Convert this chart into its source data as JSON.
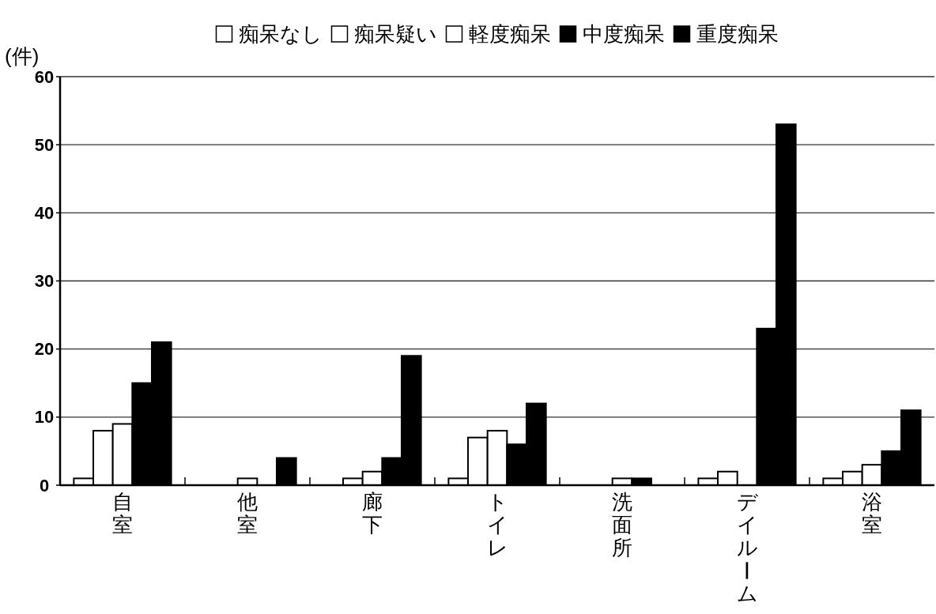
{
  "chart_data": {
    "type": "bar",
    "ylabel": "(件)",
    "categories": [
      "自室",
      "他室",
      "廊下",
      "トイレ",
      "洗面所",
      "デイルーム",
      "浴室"
    ],
    "series": [
      {
        "name": "痴呆なし",
        "color": "#ffffff",
        "values": [
          1,
          0,
          0,
          1,
          0,
          1,
          1
        ]
      },
      {
        "name": "痴呆疑い",
        "color": "#ffffff",
        "values": [
          8,
          0,
          1,
          7,
          0,
          2,
          2
        ]
      },
      {
        "name": "軽度痴呆",
        "color": "#ffffff",
        "values": [
          9,
          1,
          2,
          8,
          1,
          0,
          3
        ]
      },
      {
        "name": "中度痴呆",
        "color": "#000000",
        "values": [
          15,
          0,
          4,
          6,
          1,
          23,
          5
        ]
      },
      {
        "name": "重度痴呆",
        "color": "#000000",
        "values": [
          21,
          4,
          19,
          12,
          0,
          53,
          11
        ]
      }
    ],
    "ylim": [
      0,
      60
    ],
    "yticks": [
      0,
      10,
      20,
      30,
      40,
      50,
      60
    ],
    "grid": "y",
    "legend": "top"
  }
}
